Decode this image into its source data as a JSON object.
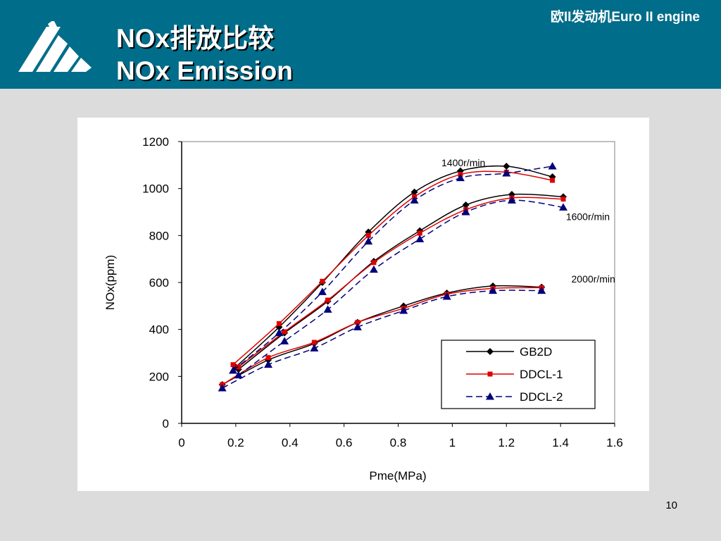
{
  "header": {
    "title_zh": "NOx排放比较",
    "title_en": "NOx Emission",
    "engine_label": "欧II发动机Euro II engine",
    "bg_color": "#006d8a"
  },
  "page_number": "10",
  "chart_data": {
    "type": "line",
    "title": "",
    "xlabel": "Pme(MPa)",
    "ylabel": "NOx(ppm)",
    "xlim": [
      0,
      1.6
    ],
    "ylim": [
      0,
      1200
    ],
    "xticks": [
      0,
      0.2,
      0.4,
      0.6,
      0.8,
      1,
      1.2,
      1.4,
      1.6
    ],
    "xtick_labels": [
      "0",
      "0.2",
      "0.4",
      "0.6",
      "0.8",
      "1",
      "1.2",
      "1.4",
      "1.6"
    ],
    "yticks": [
      0,
      200,
      400,
      600,
      800,
      1000,
      1200
    ],
    "ytick_labels": [
      "0",
      "200",
      "400",
      "600",
      "800",
      "1000",
      "1200"
    ],
    "grid": false,
    "legend_position": "lower-right",
    "annotations": [
      {
        "text": "1400r/min",
        "x": 0.96,
        "y": 1095
      },
      {
        "text": "1600r/min",
        "x": 1.42,
        "y": 865
      },
      {
        "text": "2000r/min",
        "x": 1.44,
        "y": 600
      }
    ],
    "series": [
      {
        "name": "GB2D",
        "color": "#000000",
        "marker": "diamond",
        "dash": "solid",
        "groups": [
          {
            "x": [
              0.2,
              0.36,
              0.52,
              0.69,
              0.86,
              1.03,
              1.2,
              1.37
            ],
            "y": [
              240,
              410,
              600,
              815,
              985,
              1075,
              1095,
              1050
            ]
          },
          {
            "x": [
              0.21,
              0.38,
              0.54,
              0.71,
              0.88,
              1.05,
              1.22,
              1.41
            ],
            "y": [
              230,
              385,
              520,
              690,
              820,
              930,
              975,
              965
            ]
          },
          {
            "x": [
              0.15,
              0.32,
              0.49,
              0.65,
              0.82,
              0.98,
              1.15,
              1.33
            ],
            "y": [
              165,
              270,
              340,
              430,
              500,
              555,
              585,
              580
            ]
          }
        ]
      },
      {
        "name": "DDCL-1",
        "color": "#e00000",
        "marker": "square",
        "dash": "solid",
        "groups": [
          {
            "x": [
              0.19,
              0.36,
              0.52,
              0.69,
              0.86,
              1.03,
              1.2,
              1.37
            ],
            "y": [
              250,
              425,
              605,
              800,
              965,
              1060,
              1070,
              1035
            ]
          },
          {
            "x": [
              0.21,
              0.38,
              0.54,
              0.71,
              0.88,
              1.05,
              1.22,
              1.41
            ],
            "y": [
              240,
              390,
              525,
              685,
              810,
              910,
              960,
              955
            ]
          },
          {
            "x": [
              0.15,
              0.32,
              0.49,
              0.65,
              0.82,
              0.98,
              1.15,
              1.33
            ],
            "y": [
              165,
              280,
              345,
              430,
              490,
              550,
              575,
              578
            ]
          }
        ]
      },
      {
        "name": "DDCL-2",
        "color": "#00007a",
        "marker": "triangle",
        "dash": "dashed",
        "groups": [
          {
            "x": [
              0.19,
              0.36,
              0.52,
              0.69,
              0.86,
              1.03,
              1.2,
              1.37
            ],
            "y": [
              225,
              385,
              560,
              775,
              950,
              1045,
              1065,
              1095
            ]
          },
          {
            "x": [
              0.21,
              0.38,
              0.54,
              0.71,
              0.88,
              1.05,
              1.22,
              1.41
            ],
            "y": [
              205,
              350,
              485,
              655,
              785,
              900,
              950,
              920
            ]
          },
          {
            "x": [
              0.15,
              0.32,
              0.49,
              0.65,
              0.82,
              0.98,
              1.15,
              1.33
            ],
            "y": [
              150,
              250,
              320,
              410,
              480,
              540,
              565,
              565
            ]
          }
        ]
      }
    ]
  }
}
